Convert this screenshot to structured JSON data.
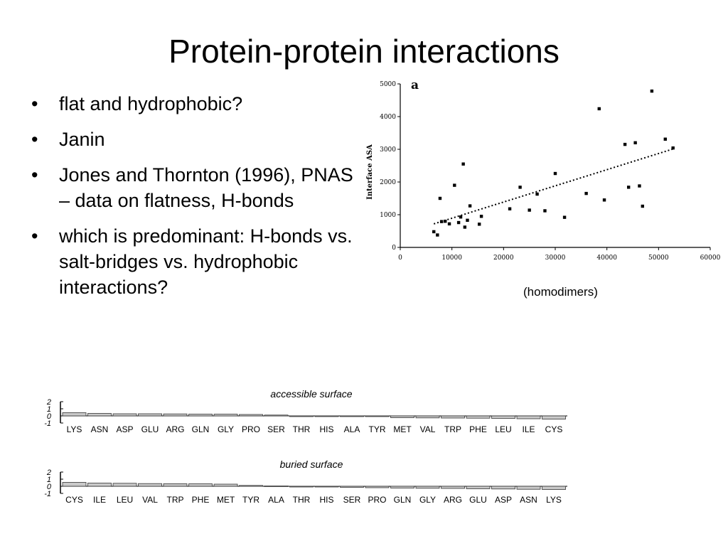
{
  "slide": {
    "title": "Protein-protein interactions",
    "bullets": [
      "flat and hydrophobic?",
      "Janin",
      "Jones and Thornton (1996), PNAS – data on flatness, H-bonds",
      "which is predominant: H-bonds vs. salt-bridges vs. hydrophobic interactions?"
    ],
    "caption": "(homodimers)"
  },
  "chart_data": [
    {
      "type": "scatter",
      "panel_label": "a",
      "xlabel": "",
      "ylabel": "Interface ASA",
      "xlim": [
        0,
        60000
      ],
      "ylim": [
        0,
        5000
      ],
      "xticks": [
        0,
        10000,
        20000,
        30000,
        40000,
        50000,
        60000
      ],
      "yticks": [
        0,
        1000,
        2000,
        3000,
        4000,
        5000
      ],
      "points": [
        [
          6500,
          480
        ],
        [
          7200,
          380
        ],
        [
          7700,
          1500
        ],
        [
          8000,
          790
        ],
        [
          8700,
          800
        ],
        [
          9500,
          720
        ],
        [
          10500,
          1900
        ],
        [
          11300,
          760
        ],
        [
          11700,
          930
        ],
        [
          12200,
          2550
        ],
        [
          12500,
          620
        ],
        [
          13000,
          830
        ],
        [
          13500,
          1270
        ],
        [
          15300,
          710
        ],
        [
          15700,
          950
        ],
        [
          21200,
          1180
        ],
        [
          23200,
          1840
        ],
        [
          25000,
          1140
        ],
        [
          26500,
          1630
        ],
        [
          28000,
          1120
        ],
        [
          30000,
          2260
        ],
        [
          31800,
          920
        ],
        [
          36000,
          1650
        ],
        [
          38500,
          4240
        ],
        [
          39500,
          1450
        ],
        [
          43500,
          3150
        ],
        [
          44200,
          1840
        ],
        [
          45500,
          3200
        ],
        [
          46300,
          1880
        ],
        [
          46900,
          1260
        ],
        [
          48700,
          4780
        ],
        [
          51300,
          3310
        ],
        [
          52800,
          3040
        ]
      ],
      "trendline": {
        "style": "dotted",
        "x": [
          6500,
          53000
        ],
        "y": [
          720,
          3020
        ]
      },
      "grid": false
    },
    {
      "type": "bar",
      "title": "accessible surface",
      "categories": [
        "LYS",
        "ASN",
        "ASP",
        "GLU",
        "ARG",
        "GLN",
        "GLY",
        "PRO",
        "SER",
        "THR",
        "HIS",
        "ALA",
        "TYR",
        "MET",
        "VAL",
        "TRP",
        "PHE",
        "LEU",
        "ILE",
        "CYS"
      ],
      "values": [
        0.45,
        0.35,
        0.3,
        0.3,
        0.28,
        0.25,
        0.25,
        0.2,
        0.12,
        -0.05,
        -0.05,
        -0.08,
        -0.1,
        -0.25,
        -0.28,
        -0.3,
        -0.32,
        -0.35,
        -0.4,
        -0.45
      ],
      "ylim": [
        -1,
        2
      ],
      "yticks": [
        -1,
        0,
        1,
        2
      ],
      "grid": false
    },
    {
      "type": "bar",
      "title": "buried surface",
      "categories": [
        "CYS",
        "ILE",
        "LEU",
        "VAL",
        "TRP",
        "PHE",
        "MET",
        "TYR",
        "ALA",
        "THR",
        "HIS",
        "SER",
        "PRO",
        "GLN",
        "GLY",
        "ARG",
        "GLU",
        "ASP",
        "ASN",
        "LYS"
      ],
      "values": [
        0.55,
        0.45,
        0.42,
        0.38,
        0.36,
        0.35,
        0.3,
        0.12,
        0.05,
        -0.05,
        -0.1,
        -0.15,
        -0.2,
        -0.25,
        -0.28,
        -0.3,
        -0.35,
        -0.38,
        -0.42,
        -0.45
      ],
      "ylim": [
        -1,
        2
      ],
      "yticks": [
        -1,
        0,
        1,
        2
      ],
      "grid": false
    }
  ]
}
